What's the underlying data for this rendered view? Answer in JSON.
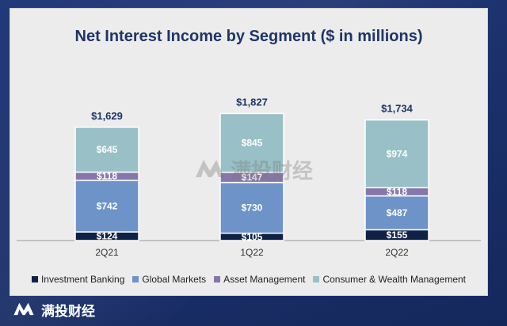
{
  "chart_data": {
    "type": "bar",
    "stacked": true,
    "title": "Net Interest Income by Segment ($ in millions)",
    "categories": [
      "2Q21",
      "1Q22",
      "2Q22"
    ],
    "totals": [
      1629,
      1827,
      1734
    ],
    "total_labels": [
      "$1,629",
      "$1,827",
      "$1,734"
    ],
    "series": [
      {
        "name": "Investment Banking",
        "color": "#0f2147",
        "values": [
          124,
          105,
          155
        ],
        "labels": [
          "$124",
          "$105",
          "$155"
        ]
      },
      {
        "name": "Global Markets",
        "color": "#6d93c9",
        "values": [
          742,
          730,
          487
        ],
        "labels": [
          "$742",
          "$730",
          "$487"
        ]
      },
      {
        "name": "Asset Management",
        "color": "#8676a9",
        "values": [
          118,
          147,
          118
        ],
        "labels": [
          "$118",
          "$147",
          "$118"
        ]
      },
      {
        "name": "Consumer & Wealth Management",
        "color": "#98c0c6",
        "values": [
          645,
          845,
          974
        ],
        "labels": [
          "$645",
          "$845",
          "$974"
        ]
      }
    ],
    "legend_position": "bottom",
    "grid": false,
    "ylim": [
      0,
      1900
    ]
  },
  "watermark": {
    "text": "满投财经",
    "icon": "mountain-logo-icon"
  },
  "brand": {
    "text": "满投财经",
    "icon": "mountain-logo-icon",
    "color": "#ffffff"
  }
}
